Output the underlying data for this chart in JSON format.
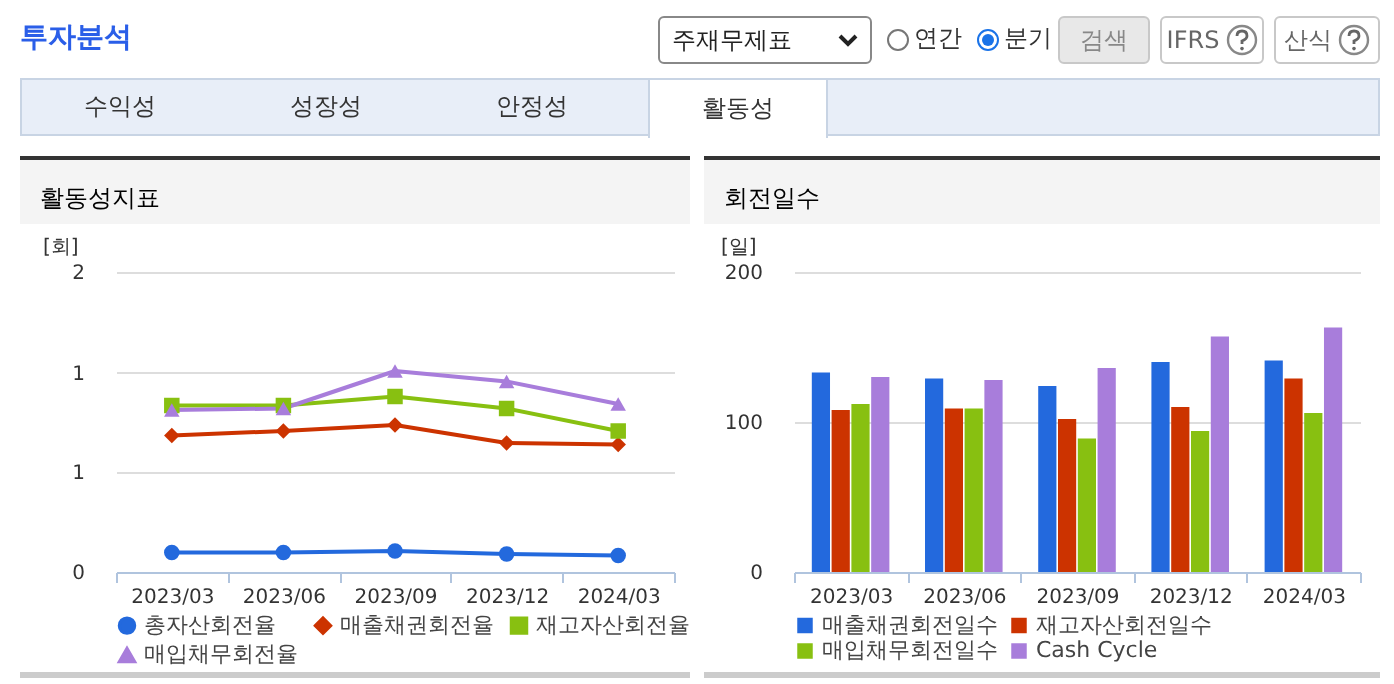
{
  "chart_data": [
    {
      "type": "other",
      "title": "투자분석",
      "annotations": [
        "주재무제표",
        "연간",
        "분기",
        "검색",
        "IFRS",
        "산식",
        "수익성",
        "성장성",
        "안정성",
        "활동성"
      ]
    },
    {
      "type": "line",
      "title": "활동성지표",
      "ylabel": "[회]",
      "categories": [
        "2023/03",
        "2023/06",
        "2023/09",
        "2023/12",
        "2024/03"
      ],
      "ylim": [
        0,
        2
      ],
      "yticks": [
        0,
        {
          "value": 0.67,
          "label": "1"
        },
        {
          "value": 1.33,
          "label": "1"
        },
        2
      ],
      "grid": "y",
      "legend": "bottom",
      "line_style": "solid",
      "series": [
        {
          "name": "총자산회전율",
          "color": "#2369dd",
          "marker": "circle",
          "values": [
            0.13,
            0.13,
            0.14,
            0.12,
            0.11
          ]
        },
        {
          "name": "매출채권회전율",
          "color": "#cc3300",
          "marker": "diamond",
          "values": [
            0.91,
            0.94,
            0.98,
            0.86,
            0.85
          ]
        },
        {
          "name": "재고자산회전율",
          "color": "#88c011",
          "marker": "square",
          "values": [
            1.11,
            1.11,
            1.17,
            1.09,
            0.94
          ]
        },
        {
          "name": "매입채무회전율",
          "color": "#a87ddb",
          "marker": "triangle",
          "values": [
            1.08,
            1.09,
            1.34,
            1.27,
            1.12
          ]
        }
      ]
    },
    {
      "type": "bar",
      "title": "회전일수",
      "ylabel": "[일]",
      "categories": [
        "2023/03",
        "2023/06",
        "2023/09",
        "2023/12",
        "2024/03"
      ],
      "ylim": [
        0,
        200
      ],
      "yticks": [
        0,
        100,
        200
      ],
      "grid": "y",
      "legend": "bottom",
      "series": [
        {
          "name": "매출채권회전일수",
          "color": "#2369dd",
          "values": [
            133,
            129,
            124,
            140,
            141
          ]
        },
        {
          "name": "재고자산회전일수",
          "color": "#cc3300",
          "values": [
            108,
            109,
            102,
            110,
            129
          ]
        },
        {
          "name": "매입채무회전일수",
          "color": "#88c011",
          "values": [
            112,
            109,
            89,
            94,
            106
          ]
        },
        {
          "name": "Cash Cycle",
          "color": "#a87ddb",
          "values": [
            130,
            128,
            136,
            157,
            163
          ]
        }
      ]
    }
  ]
}
